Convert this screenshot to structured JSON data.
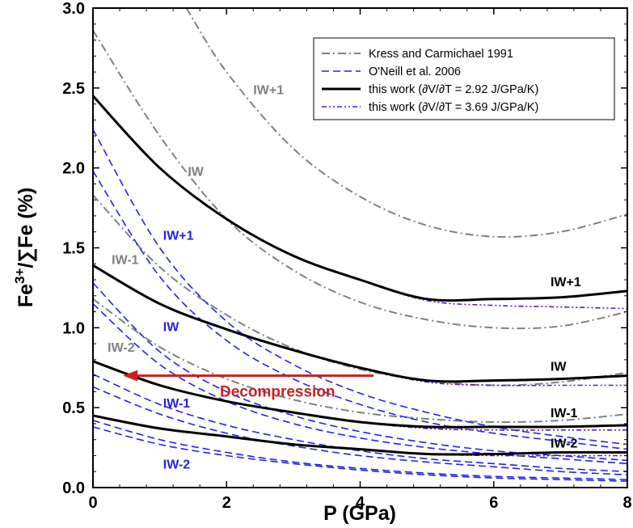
{
  "chart_data": {
    "type": "line",
    "xlabel": "P (GPa)",
    "ylabel_parts": [
      "Fe",
      "3+",
      "/∑Fe (%)"
    ],
    "xlim": [
      0,
      8
    ],
    "ylim": [
      0,
      3.0
    ],
    "x_ticks": [
      "0",
      "2",
      "4",
      "6",
      "8"
    ],
    "y_ticks": [
      "0.0",
      "0.5",
      "1.0",
      "1.5",
      "2.0",
      "2.5",
      "3.0"
    ],
    "grid": false,
    "legend_position": "top-right",
    "legend": [
      {
        "key": "kc",
        "label": "Kress and Carmichael 1991"
      },
      {
        "key": "on",
        "label": "O'Neill et al. 2006"
      },
      {
        "key": "tw1",
        "label": "this work (∂V/∂T = 2.92 J/GPa/K)"
      },
      {
        "key": "tw2",
        "label": "this work (∂V/∂T = 3.69 J/GPa/K)"
      }
    ],
    "styles": {
      "kc": {
        "color": "#808080",
        "dash": "10 4 2 4",
        "width": 2
      },
      "on": {
        "color": "#2222ee",
        "dash": "9 5",
        "width": 1.6
      },
      "tw1": {
        "color": "#000000",
        "dash": "",
        "width": 3
      },
      "tw2": {
        "color": "#5a18c8",
        "dash": "6 3 2 3 2 3",
        "width": 1.6
      }
    },
    "series": [
      {
        "key": "kc",
        "label_ref": "IW+1",
        "points": [
          [
            1.4,
            3.0
          ],
          [
            2,
            2.6
          ],
          [
            3,
            2.12
          ],
          [
            4,
            1.82
          ],
          [
            5,
            1.64
          ],
          [
            6,
            1.57
          ],
          [
            7,
            1.6
          ],
          [
            8,
            1.71
          ]
        ]
      },
      {
        "key": "kc",
        "label_ref": "IW",
        "points": [
          [
            0,
            2.86
          ],
          [
            1,
            2.2
          ],
          [
            2,
            1.68
          ],
          [
            3,
            1.36
          ],
          [
            4,
            1.16
          ],
          [
            5,
            1.05
          ],
          [
            6,
            1.0
          ],
          [
            7,
            1.01
          ],
          [
            8,
            1.1
          ]
        ]
      },
      {
        "key": "kc",
        "label_ref": "IW-1",
        "points": [
          [
            0,
            1.83
          ],
          [
            1,
            1.38
          ],
          [
            2,
            1.08
          ],
          [
            3,
            0.87
          ],
          [
            4,
            0.74
          ],
          [
            5,
            0.67
          ],
          [
            6,
            0.64
          ],
          [
            7,
            0.66
          ],
          [
            8,
            0.72
          ]
        ]
      },
      {
        "key": "kc",
        "label_ref": "IW-2",
        "points": [
          [
            0,
            1.18
          ],
          [
            1,
            0.88
          ],
          [
            2,
            0.68
          ],
          [
            3,
            0.55
          ],
          [
            4,
            0.47
          ],
          [
            5,
            0.43
          ],
          [
            6,
            0.41
          ],
          [
            7,
            0.42
          ],
          [
            8,
            0.46
          ]
        ]
      },
      {
        "key": "on",
        "label_ref": "IW+1 a",
        "points": [
          [
            0,
            2.24
          ],
          [
            1,
            1.5
          ],
          [
            2,
            1.04
          ],
          [
            3,
            0.77
          ],
          [
            4,
            0.59
          ],
          [
            5,
            0.47
          ],
          [
            6,
            0.38
          ],
          [
            7,
            0.32
          ],
          [
            8,
            0.27
          ]
        ]
      },
      {
        "key": "on",
        "label_ref": "IW+1 b",
        "points": [
          [
            0,
            1.98
          ],
          [
            1,
            1.32
          ],
          [
            2,
            0.92
          ],
          [
            3,
            0.68
          ],
          [
            4,
            0.52
          ],
          [
            5,
            0.41
          ],
          [
            6,
            0.34
          ],
          [
            7,
            0.29
          ],
          [
            8,
            0.24
          ]
        ]
      },
      {
        "key": "on",
        "label_ref": "IW a",
        "points": [
          [
            0,
            1.28
          ],
          [
            1,
            0.85
          ],
          [
            2,
            0.6
          ],
          [
            3,
            0.45
          ],
          [
            4,
            0.35
          ],
          [
            5,
            0.28
          ],
          [
            6,
            0.23
          ],
          [
            7,
            0.2
          ],
          [
            8,
            0.17
          ]
        ]
      },
      {
        "key": "on",
        "label_ref": "IW b",
        "points": [
          [
            0,
            1.15
          ],
          [
            1,
            0.77
          ],
          [
            2,
            0.54
          ],
          [
            3,
            0.4
          ],
          [
            4,
            0.31
          ],
          [
            5,
            0.25
          ],
          [
            6,
            0.21
          ],
          [
            7,
            0.18
          ],
          [
            8,
            0.15
          ]
        ]
      },
      {
        "key": "on",
        "label_ref": "IW-1 a",
        "points": [
          [
            0,
            0.71
          ],
          [
            1,
            0.52
          ],
          [
            2,
            0.39
          ],
          [
            3,
            0.3
          ],
          [
            4,
            0.23
          ],
          [
            5,
            0.18
          ],
          [
            6,
            0.15
          ],
          [
            7,
            0.12
          ],
          [
            8,
            0.1
          ]
        ]
      },
      {
        "key": "on",
        "label_ref": "IW-1 b",
        "points": [
          [
            0,
            0.63
          ],
          [
            1,
            0.46
          ],
          [
            2,
            0.34
          ],
          [
            3,
            0.26
          ],
          [
            4,
            0.2
          ],
          [
            5,
            0.16
          ],
          [
            6,
            0.13
          ],
          [
            7,
            0.1
          ],
          [
            8,
            0.08
          ]
        ]
      },
      {
        "key": "on",
        "label_ref": "IW-2 a",
        "points": [
          [
            0,
            0.42
          ],
          [
            1,
            0.3
          ],
          [
            2,
            0.22
          ],
          [
            3,
            0.16
          ],
          [
            4,
            0.12
          ],
          [
            5,
            0.09
          ],
          [
            6,
            0.07
          ],
          [
            7,
            0.06
          ],
          [
            8,
            0.05
          ]
        ]
      },
      {
        "key": "on",
        "label_ref": "IW-2 b",
        "points": [
          [
            0,
            0.38
          ],
          [
            1,
            0.27
          ],
          [
            2,
            0.2
          ],
          [
            3,
            0.15
          ],
          [
            4,
            0.11
          ],
          [
            5,
            0.08
          ],
          [
            6,
            0.06
          ],
          [
            7,
            0.05
          ],
          [
            8,
            0.04
          ]
        ]
      },
      {
        "key": "tw2",
        "label_ref": "IW+1",
        "points": [
          [
            0,
            2.45
          ],
          [
            1,
            2.0
          ],
          [
            2,
            1.68
          ],
          [
            3,
            1.45
          ],
          [
            4,
            1.3
          ],
          [
            5,
            1.17
          ],
          [
            6,
            1.14
          ],
          [
            7,
            1.13
          ],
          [
            8,
            1.12
          ]
        ]
      },
      {
        "key": "tw2",
        "label_ref": "IW",
        "points": [
          [
            0,
            1.39
          ],
          [
            1,
            1.15
          ],
          [
            2,
            0.99
          ],
          [
            3,
            0.86
          ],
          [
            4,
            0.75
          ],
          [
            5,
            0.66
          ],
          [
            6,
            0.64
          ],
          [
            7,
            0.64
          ],
          [
            8,
            0.64
          ]
        ]
      },
      {
        "key": "tw2",
        "label_ref": "IW-1",
        "points": [
          [
            0,
            0.79
          ],
          [
            1,
            0.64
          ],
          [
            2,
            0.54
          ],
          [
            3,
            0.47
          ],
          [
            4,
            0.41
          ],
          [
            5,
            0.37
          ],
          [
            6,
            0.36
          ],
          [
            7,
            0.36
          ],
          [
            8,
            0.36
          ]
        ]
      },
      {
        "key": "tw2",
        "label_ref": "IW-2",
        "points": [
          [
            0,
            0.45
          ],
          [
            1,
            0.37
          ],
          [
            2,
            0.32
          ],
          [
            3,
            0.27
          ],
          [
            4,
            0.24
          ],
          [
            5,
            0.21
          ],
          [
            6,
            0.2
          ],
          [
            7,
            0.2
          ],
          [
            8,
            0.2
          ]
        ]
      },
      {
        "key": "tw1",
        "label_ref": "IW+1",
        "points": [
          [
            0,
            2.45
          ],
          [
            1,
            2.0
          ],
          [
            2,
            1.68
          ],
          [
            3,
            1.45
          ],
          [
            4,
            1.3
          ],
          [
            5,
            1.18
          ],
          [
            6,
            1.18
          ],
          [
            7,
            1.19
          ],
          [
            8,
            1.23
          ]
        ]
      },
      {
        "key": "tw1",
        "label_ref": "IW",
        "points": [
          [
            0,
            1.39
          ],
          [
            1,
            1.15
          ],
          [
            2,
            0.99
          ],
          [
            3,
            0.86
          ],
          [
            4,
            0.75
          ],
          [
            5,
            0.67
          ],
          [
            6,
            0.67
          ],
          [
            7,
            0.68
          ],
          [
            8,
            0.7
          ]
        ]
      },
      {
        "key": "tw1",
        "label_ref": "IW-1",
        "points": [
          [
            0,
            0.79
          ],
          [
            1,
            0.64
          ],
          [
            2,
            0.54
          ],
          [
            3,
            0.47
          ],
          [
            4,
            0.41
          ],
          [
            5,
            0.38
          ],
          [
            6,
            0.38
          ],
          [
            7,
            0.38
          ],
          [
            8,
            0.39
          ]
        ]
      },
      {
        "key": "tw1",
        "label_ref": "IW-2",
        "points": [
          [
            0,
            0.45
          ],
          [
            1,
            0.37
          ],
          [
            2,
            0.32
          ],
          [
            3,
            0.27
          ],
          [
            4,
            0.24
          ],
          [
            5,
            0.21
          ],
          [
            6,
            0.21
          ],
          [
            7,
            0.22
          ],
          [
            8,
            0.22
          ]
        ]
      }
    ],
    "annotations": [
      {
        "text": "IW+1",
        "x": 2.4,
        "y": 2.46,
        "color": "#808080"
      },
      {
        "text": "IW",
        "x": 1.42,
        "y": 1.95,
        "color": "#808080"
      },
      {
        "text": "IW-1",
        "x": 0.28,
        "y": 1.4,
        "color": "#808080"
      },
      {
        "text": "IW-2",
        "x": 0.22,
        "y": 0.85,
        "color": "#808080"
      },
      {
        "text": "IW+1",
        "x": 1.05,
        "y": 1.55,
        "color": "#2222ee"
      },
      {
        "text": "IW",
        "x": 1.05,
        "y": 0.98,
        "color": "#2222ee"
      },
      {
        "text": "IW-1",
        "x": 1.05,
        "y": 0.5,
        "color": "#2222ee"
      },
      {
        "text": "IW-2",
        "x": 1.05,
        "y": 0.12,
        "color": "#2222ee"
      },
      {
        "text": "IW+1",
        "x": 6.85,
        "y": 1.26,
        "color": "#000000"
      },
      {
        "text": "IW",
        "x": 6.85,
        "y": 0.73,
        "color": "#000000"
      },
      {
        "text": "IW-1",
        "x": 6.85,
        "y": 0.44,
        "color": "#000000"
      },
      {
        "text": "IW-2",
        "x": 6.85,
        "y": 0.25,
        "color": "#000000"
      }
    ],
    "arrow": {
      "text": "Decompression",
      "from_x": 4.2,
      "to_x": 0.45,
      "y": 0.7,
      "text_x": 1.9,
      "text_y": 0.57,
      "color": "#cc1f1f"
    }
  }
}
